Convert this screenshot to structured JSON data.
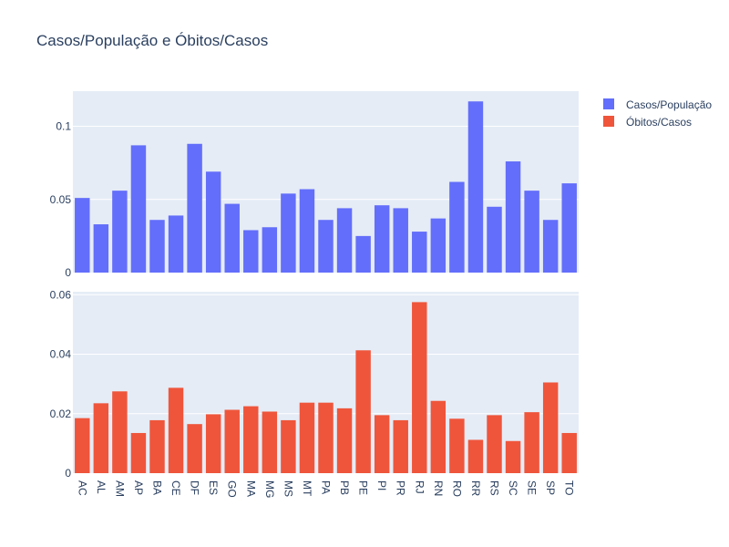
{
  "chart_data": {
    "type": "bar",
    "title": "Casos/População e Óbitos/Casos",
    "categories": [
      "AC",
      "AL",
      "AM",
      "AP",
      "BA",
      "CE",
      "DF",
      "ES",
      "GO",
      "MA",
      "MG",
      "MS",
      "MT",
      "PA",
      "PB",
      "PE",
      "PI",
      "PR",
      "RJ",
      "RN",
      "RO",
      "RR",
      "RS",
      "SC",
      "SE",
      "SP",
      "TO"
    ],
    "legend": {
      "placement": "top-right"
    },
    "grid": true,
    "subplots": [
      {
        "series_name": "Casos/População",
        "color": "#636efa",
        "ylim": [
          0,
          0.124
        ],
        "yticks": [
          0,
          0.05,
          0.1
        ],
        "ytick_labels": [
          "0",
          "0.05",
          "0.1"
        ],
        "values": [
          0.051,
          0.033,
          0.056,
          0.087,
          0.036,
          0.039,
          0.088,
          0.069,
          0.047,
          0.029,
          0.031,
          0.054,
          0.057,
          0.036,
          0.044,
          0.025,
          0.046,
          0.044,
          0.028,
          0.037,
          0.062,
          0.117,
          0.045,
          0.076,
          0.056,
          0.036,
          0.061
        ]
      },
      {
        "series_name": "Óbitos/Casos",
        "color": "#ef553b",
        "ylim": [
          0,
          0.061
        ],
        "yticks": [
          0,
          0.02,
          0.04,
          0.06
        ],
        "ytick_labels": [
          "0",
          "0.02",
          "0.04",
          "0.06"
        ],
        "values": [
          0.0185,
          0.0235,
          0.0275,
          0.0135,
          0.0178,
          0.0287,
          0.0165,
          0.0198,
          0.0213,
          0.0225,
          0.0207,
          0.0178,
          0.0237,
          0.0237,
          0.0218,
          0.0413,
          0.0195,
          0.0178,
          0.0575,
          0.0243,
          0.0183,
          0.0112,
          0.0195,
          0.0108,
          0.0205,
          0.0305,
          0.0135
        ]
      }
    ]
  }
}
